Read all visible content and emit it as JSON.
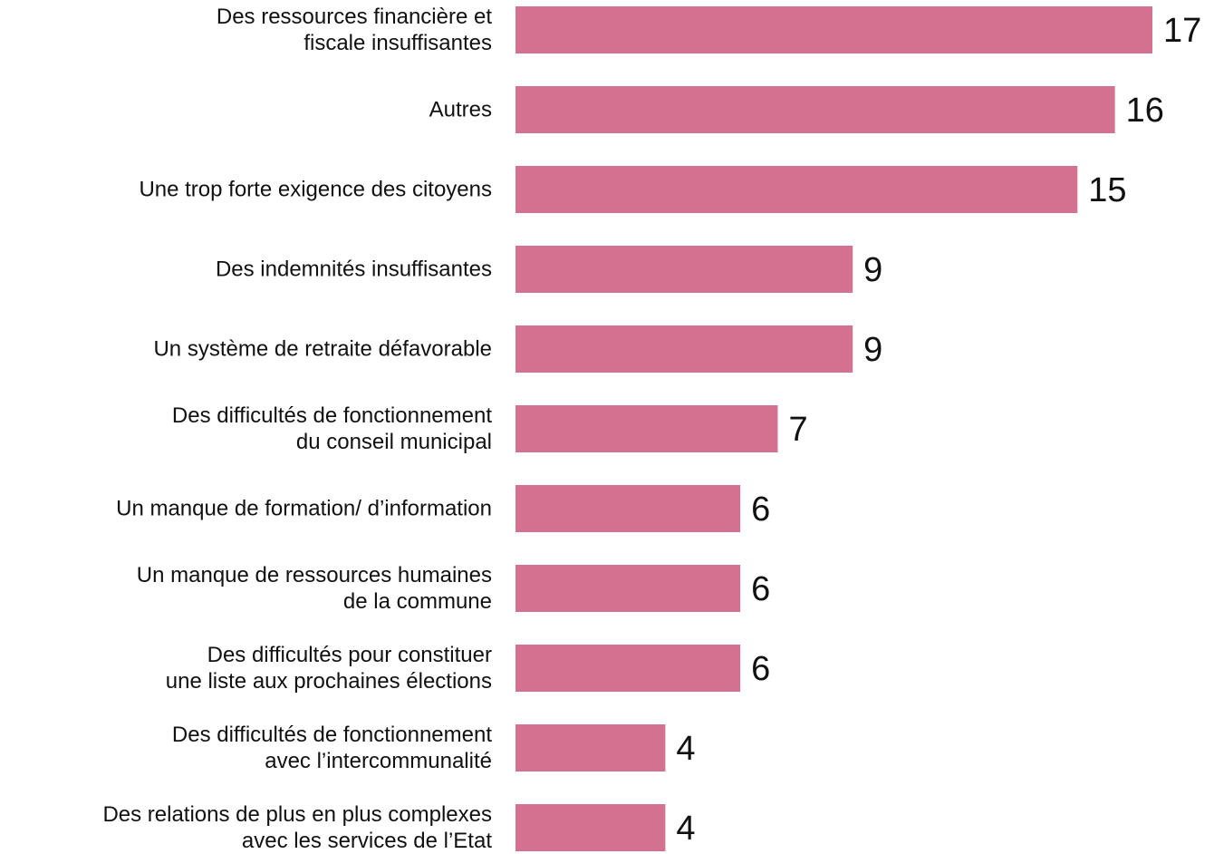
{
  "chart_data": {
    "type": "bar",
    "orientation": "horizontal",
    "categories": [
      "Des ressources financière et\nfiscale insuffisantes",
      "Autres",
      "Une trop forte exigence des citoyens",
      "Des indemnités insuffisantes",
      "Un système de retraite défavorable",
      "Des difficultés de fonctionnement\ndu conseil municipal",
      "Un manque de formation/ d’information",
      "Un manque de ressources humaines\nde la commune",
      "Des difficultés pour constituer\nune liste aux prochaines élections",
      "Des difficultés de fonctionnement\navec l’intercommunalité",
      "Des relations de plus en plus complexes\navec les services de l’Etat"
    ],
    "values": [
      17,
      16,
      15,
      9,
      9,
      7,
      6,
      6,
      6,
      4,
      4
    ],
    "color": "#d47191"
  }
}
